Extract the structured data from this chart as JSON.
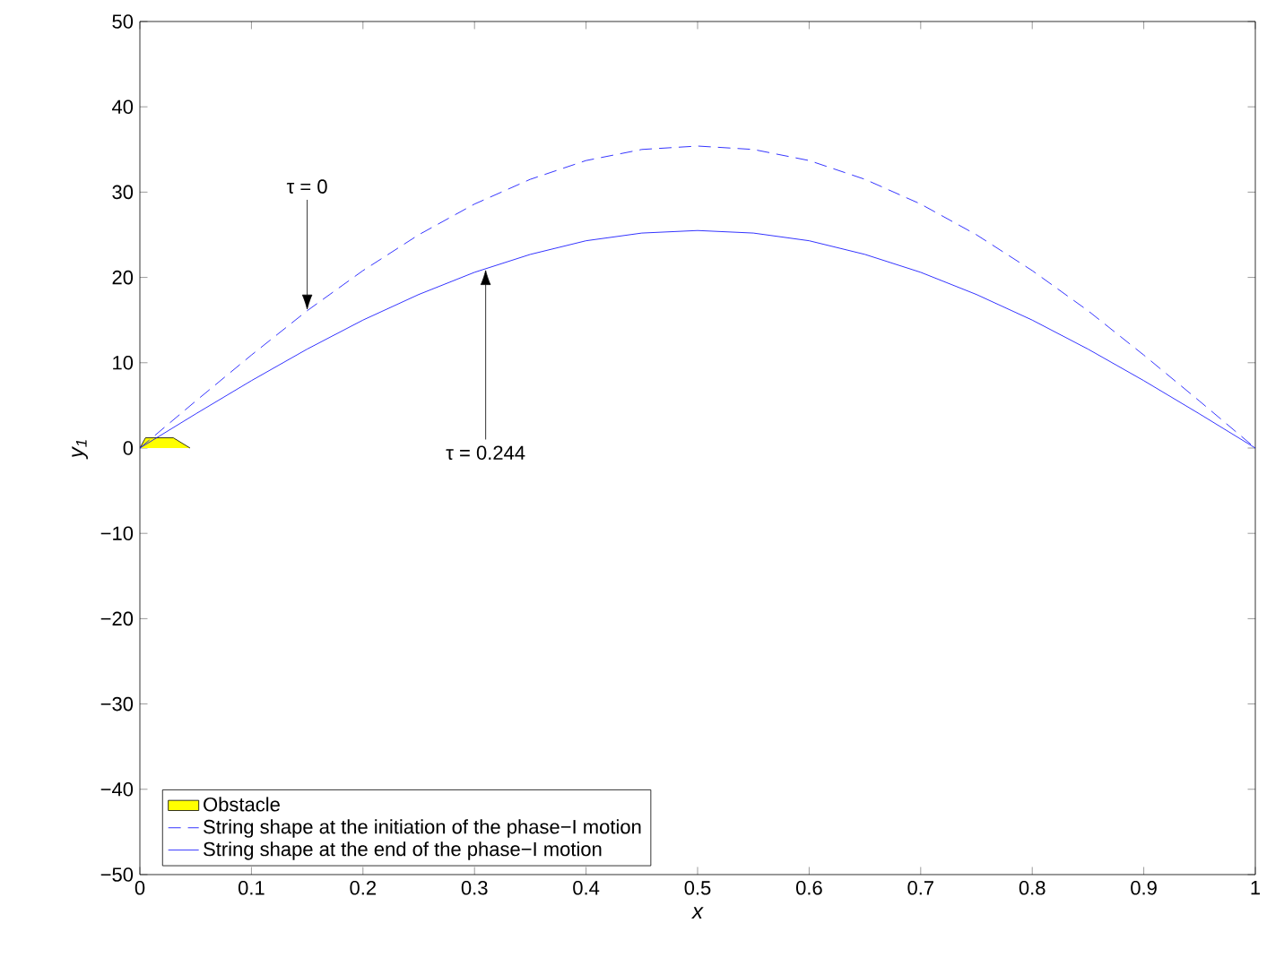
{
  "chart_data": {
    "type": "line",
    "xlabel": "x",
    "ylabel": "y$_{1}$",
    "xlim": [
      0,
      1
    ],
    "xticks": [
      0,
      0.1,
      0.2,
      0.3,
      0.4,
      0.5,
      0.6,
      0.7,
      0.8,
      0.9,
      1
    ],
    "ylim": [
      -50,
      50
    ],
    "yticks": [
      {
        "value": -50,
        "label": "−50"
      },
      {
        "value": -40,
        "label": "−40"
      },
      {
        "value": -30,
        "label": "−30"
      },
      {
        "value": -20,
        "label": "−20"
      },
      {
        "value": -10,
        "label": "−10"
      },
      0,
      10,
      20,
      30,
      40,
      50
    ],
    "grid": false,
    "legend": "bottom left",
    "series": [
      {
        "name": "Obstacle",
        "type": "area",
        "color": "#ffff00",
        "x": [
          0,
          0.005,
          0.03,
          0.045
        ],
        "values": [
          0,
          1.2,
          1.2,
          0
        ]
      },
      {
        "name": "String shape at the initiation of the phase−I motion",
        "color": "#0000ff",
        "line_style": "dashed",
        "x": [
          0,
          0.05,
          0.1,
          0.15,
          0.2,
          0.25,
          0.3,
          0.35,
          0.4,
          0.45,
          0.5,
          0.55,
          0.6,
          0.65,
          0.7,
          0.75,
          0.8,
          0.85,
          0.9,
          0.95,
          1
        ],
        "values": [
          0,
          5.5,
          10.9,
          16.1,
          20.8,
          25.0,
          28.6,
          31.5,
          33.7,
          35.0,
          35.4,
          35.0,
          33.7,
          31.5,
          28.6,
          25.0,
          20.8,
          16.1,
          10.9,
          5.5,
          0
        ]
      },
      {
        "name": "String shape at the end of the phase−I motion",
        "color": "#0000ff",
        "line_style": "solid",
        "x": [
          0,
          0.05,
          0.1,
          0.15,
          0.2,
          0.25,
          0.3,
          0.35,
          0.4,
          0.45,
          0.5,
          0.55,
          0.6,
          0.65,
          0.7,
          0.75,
          0.8,
          0.85,
          0.9,
          0.95,
          1
        ],
        "values": [
          0,
          4.0,
          7.9,
          11.6,
          15.0,
          18.0,
          20.6,
          22.7,
          24.3,
          25.2,
          25.5,
          25.2,
          24.3,
          22.7,
          20.6,
          18.0,
          15.0,
          11.6,
          7.9,
          4.0,
          0
        ]
      }
    ],
    "annotations": [
      {
        "text": "τ = 0",
        "x": 0.15,
        "y": 16.1
      },
      {
        "text": "τ = 0.244",
        "x": 0.31,
        "y": 21.0
      }
    ]
  }
}
